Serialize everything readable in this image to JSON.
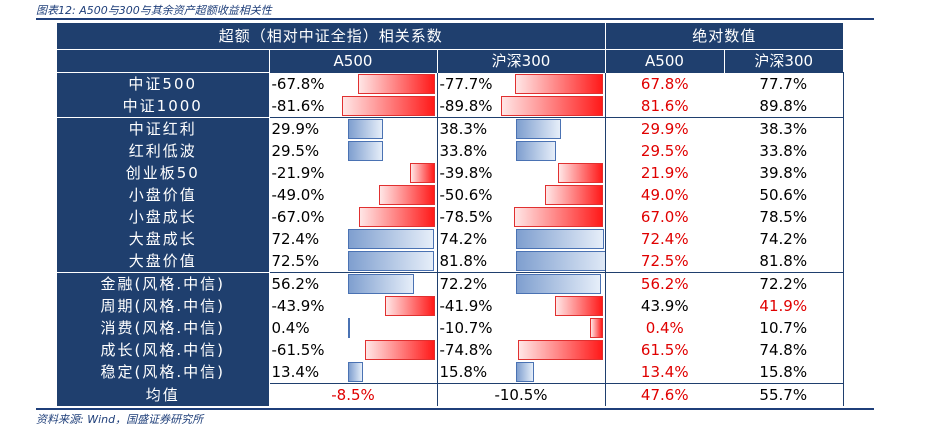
{
  "caption": "图表12: A500与300与其余资产超额收益相关性",
  "source": "资料来源: Wind，国盛证券研究所",
  "headers": {
    "group_corr": "超额（相对中证全指）相关系数",
    "group_abs": "绝对数值",
    "col_a500": "A500",
    "col_hs300": "沪深300",
    "col_abs_a500": "A500",
    "col_abs_hs300": "沪深300"
  },
  "colors": {
    "header_bg": "#1f3f6e",
    "pos_bar": "#7f9fcf",
    "neg_bar": "#ff1a1a",
    "red_text": "#e00000"
  },
  "rows": [
    {
      "label": "中证500",
      "a500": "-67.8%",
      "a500_v": -67.8,
      "hs300": "-77.7%",
      "hs300_v": -77.7,
      "abs_a500": "67.8%",
      "abs_hs300": "77.7%",
      "red_a": true,
      "red_h": false,
      "group_start": true
    },
    {
      "label": "中证1000",
      "a500": "-81.6%",
      "a500_v": -81.6,
      "hs300": "-89.8%",
      "hs300_v": -89.8,
      "abs_a500": "81.6%",
      "abs_hs300": "89.8%",
      "red_a": true,
      "red_h": false,
      "group_start": false
    },
    {
      "label": "中证红利",
      "a500": "29.9%",
      "a500_v": 29.9,
      "hs300": "38.3%",
      "hs300_v": 38.3,
      "abs_a500": "29.9%",
      "abs_hs300": "38.3%",
      "red_a": true,
      "red_h": false,
      "group_start": true
    },
    {
      "label": "红利低波",
      "a500": "29.5%",
      "a500_v": 29.5,
      "hs300": "33.8%",
      "hs300_v": 33.8,
      "abs_a500": "29.5%",
      "abs_hs300": "33.8%",
      "red_a": true,
      "red_h": false,
      "group_start": false
    },
    {
      "label": "创业板50",
      "a500": "-21.9%",
      "a500_v": -21.9,
      "hs300": "-39.8%",
      "hs300_v": -39.8,
      "abs_a500": "21.9%",
      "abs_hs300": "39.8%",
      "red_a": true,
      "red_h": false,
      "group_start": false
    },
    {
      "label": "小盘价值",
      "a500": "-49.0%",
      "a500_v": -49.0,
      "hs300": "-50.6%",
      "hs300_v": -50.6,
      "abs_a500": "49.0%",
      "abs_hs300": "50.6%",
      "red_a": true,
      "red_h": false,
      "group_start": false
    },
    {
      "label": "小盘成长",
      "a500": "-67.0%",
      "a500_v": -67.0,
      "hs300": "-78.5%",
      "hs300_v": -78.5,
      "abs_a500": "67.0%",
      "abs_hs300": "78.5%",
      "red_a": true,
      "red_h": false,
      "group_start": false
    },
    {
      "label": "大盘成长",
      "a500": "72.4%",
      "a500_v": 72.4,
      "hs300": "74.2%",
      "hs300_v": 74.2,
      "abs_a500": "72.4%",
      "abs_hs300": "74.2%",
      "red_a": true,
      "red_h": false,
      "group_start": false
    },
    {
      "label": "大盘价值",
      "a500": "72.5%",
      "a500_v": 72.5,
      "hs300": "81.8%",
      "hs300_v": 81.8,
      "abs_a500": "72.5%",
      "abs_hs300": "81.8%",
      "red_a": true,
      "red_h": false,
      "group_start": false
    },
    {
      "label": "金融(风格.中信)",
      "a500": "56.2%",
      "a500_v": 56.2,
      "hs300": "72.2%",
      "hs300_v": 72.2,
      "abs_a500": "56.2%",
      "abs_hs300": "72.2%",
      "red_a": true,
      "red_h": false,
      "group_start": true
    },
    {
      "label": "周期(风格.中信)",
      "a500": "-43.9%",
      "a500_v": -43.9,
      "hs300": "-41.9%",
      "hs300_v": -41.9,
      "abs_a500": "43.9%",
      "abs_hs300": "41.9%",
      "red_a": false,
      "red_h": true,
      "group_start": false
    },
    {
      "label": "消费(风格.中信)",
      "a500": "0.4%",
      "a500_v": 0.4,
      "hs300": "-10.7%",
      "hs300_v": -10.7,
      "abs_a500": "0.4%",
      "abs_hs300": "10.7%",
      "red_a": true,
      "red_h": false,
      "group_start": false
    },
    {
      "label": "成长(风格.中信)",
      "a500": "-61.5%",
      "a500_v": -61.5,
      "hs300": "-74.8%",
      "hs300_v": -74.8,
      "abs_a500": "61.5%",
      "abs_hs300": "74.8%",
      "red_a": true,
      "red_h": false,
      "group_start": false
    },
    {
      "label": "稳定(风格.中信)",
      "a500": "13.4%",
      "a500_v": 13.4,
      "hs300": "15.8%",
      "hs300_v": 15.8,
      "abs_a500": "13.4%",
      "abs_hs300": "15.8%",
      "red_a": true,
      "red_h": false,
      "group_start": false
    }
  ],
  "average": {
    "label": "均值",
    "a500": "-8.5%",
    "hs300": "-10.5%",
    "abs_a500": "47.6%",
    "abs_hs300": "55.7%"
  }
}
